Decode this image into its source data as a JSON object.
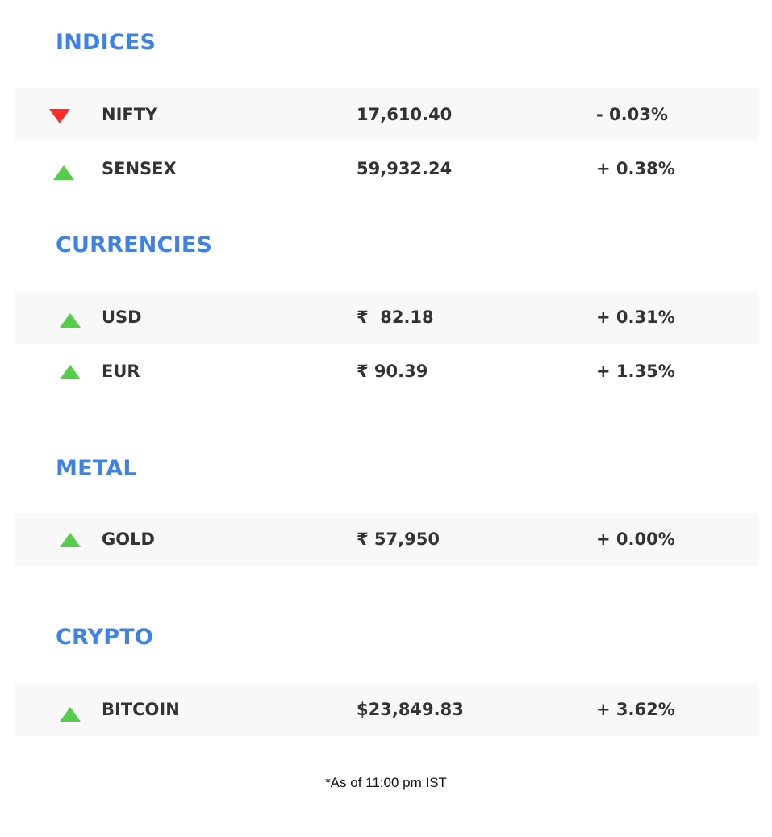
{
  "colors": {
    "heading": "#3f82e6",
    "up": "#55cc4a",
    "down": "#ff2a2a",
    "row_shade": "#f8f8f8",
    "text": "#333333"
  },
  "sections": {
    "indices": {
      "title": "INDICES",
      "rows": [
        {
          "direction": "down",
          "icon": "down-triangle-icon",
          "name": "NIFTY",
          "price": "17,610.40",
          "change": "- 0.03%"
        },
        {
          "direction": "up",
          "icon": "up-triangle-icon",
          "name": "SENSEX",
          "price": "59,932.24",
          "change": "+ 0.38%"
        }
      ]
    },
    "currencies": {
      "title": "CURRENCIES",
      "rows": [
        {
          "direction": "up",
          "icon": "up-triangle-icon",
          "name": "USD",
          "price": "₹  82.18",
          "change": "+ 0.31%"
        },
        {
          "direction": "up",
          "icon": "up-triangle-icon",
          "name": "EUR",
          "price": "₹ 90.39",
          "change": "+ 1.35%"
        }
      ]
    },
    "metal": {
      "title": "METAL",
      "rows": [
        {
          "direction": "up",
          "icon": "up-triangle-icon",
          "name": "GOLD",
          "price": "₹ 57,950",
          "change": "+ 0.00%"
        }
      ]
    },
    "crypto": {
      "title": "CRYPTO",
      "rows": [
        {
          "direction": "up",
          "icon": "up-triangle-icon",
          "name": "BITCOIN",
          "price": "$23,849.83",
          "change": "+ 3.62%"
        }
      ]
    }
  },
  "footnote": "*As of 11:00 pm IST"
}
